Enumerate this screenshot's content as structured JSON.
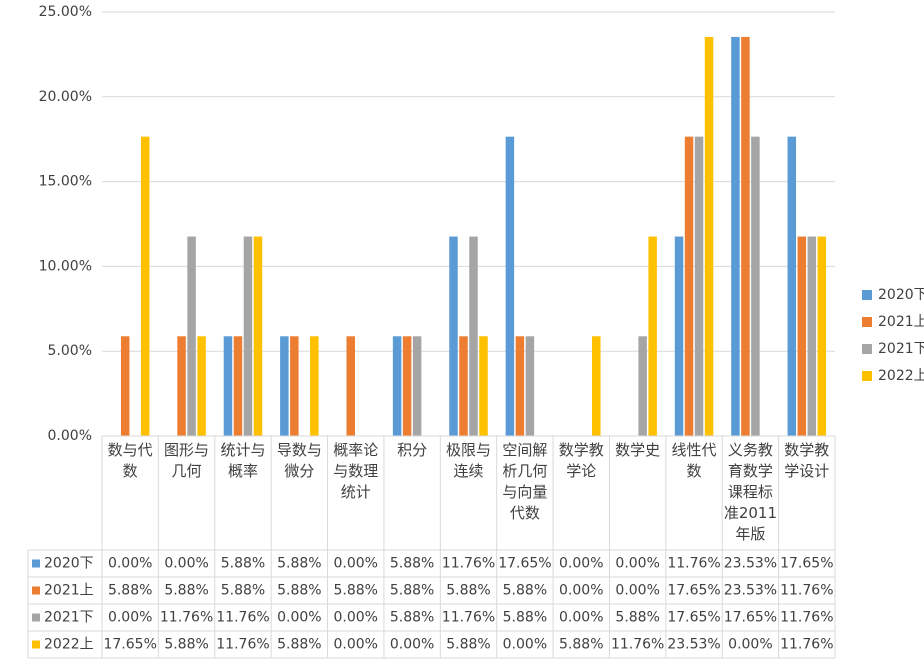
{
  "chart_data": {
    "type": "bar",
    "categories": [
      "数与代数",
      "图形与几何",
      "统计与概率",
      "导数与微分",
      "概率论与数理统计",
      "积分",
      "极限与连续",
      "空间解析几何与向量代数",
      "数学教学论",
      "数学史",
      "线性代数",
      "义务教育数学课程标准2011年版",
      "数学教学设计"
    ],
    "series": [
      {
        "name": "2020下",
        "color": "#5b9bd5",
        "values": [
          0,
          0,
          5.88,
          5.88,
          0,
          5.88,
          11.76,
          17.65,
          0,
          0,
          11.76,
          23.53,
          17.65
        ],
        "value_labels": [
          "0.00%",
          "0.00%",
          "5.88%",
          "5.88%",
          "0.00%",
          "5.88%",
          "11.76%",
          "17.65%",
          "0.00%",
          "0.00%",
          "11.76%",
          "23.53%",
          "17.65%"
        ]
      },
      {
        "name": "2021上",
        "color": "#ed7d31",
        "values": [
          5.88,
          5.88,
          5.88,
          5.88,
          5.88,
          5.88,
          5.88,
          5.88,
          0,
          0,
          17.65,
          23.53,
          11.76
        ],
        "value_labels": [
          "5.88%",
          "5.88%",
          "5.88%",
          "5.88%",
          "5.88%",
          "5.88%",
          "5.88%",
          "5.88%",
          "0.00%",
          "0.00%",
          "17.65%",
          "23.53%",
          "11.76%"
        ]
      },
      {
        "name": "2021下",
        "color": "#a5a5a5",
        "values": [
          0,
          11.76,
          11.76,
          0,
          0,
          5.88,
          11.76,
          5.88,
          0,
          5.88,
          17.65,
          17.65,
          11.76
        ],
        "value_labels": [
          "0.00%",
          "11.76%",
          "11.76%",
          "0.00%",
          "0.00%",
          "5.88%",
          "11.76%",
          "5.88%",
          "0.00%",
          "5.88%",
          "17.65%",
          "17.65%",
          "11.76%"
        ]
      },
      {
        "name": "2022上",
        "color": "#ffc000",
        "values": [
          17.65,
          5.88,
          11.76,
          5.88,
          0,
          0,
          5.88,
          0,
          5.88,
          11.76,
          23.53,
          0,
          11.76
        ],
        "value_labels": [
          "17.65%",
          "5.88%",
          "11.76%",
          "5.88%",
          "0.00%",
          "0.00%",
          "5.88%",
          "0.00%",
          "5.88%",
          "11.76%",
          "23.53%",
          "0.00%",
          "11.76%"
        ]
      }
    ],
    "ylim": [
      0,
      25
    ],
    "yticks": [
      {
        "value": 0,
        "label": "0.00%"
      },
      {
        "value": 5,
        "label": "5.00%"
      },
      {
        "value": 10,
        "label": "10.00%"
      },
      {
        "value": 15,
        "label": "15.00%"
      },
      {
        "value": 20,
        "label": "20.00%"
      },
      {
        "value": 25,
        "label": "25.00%"
      }
    ],
    "grid": true,
    "legend": "right",
    "data_table": true
  }
}
